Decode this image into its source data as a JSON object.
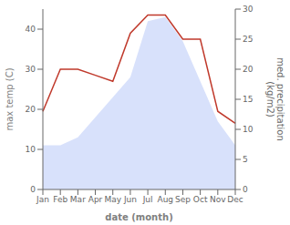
{
  "chart_data": {
    "type": "area",
    "categories": [
      "Jan",
      "Feb",
      "Mar",
      "Apr",
      "May",
      "Jun",
      "Jul",
      "Aug",
      "Sep",
      "Oct",
      "Nov",
      "Dec"
    ],
    "series": [
      {
        "type": "area",
        "color": "#b8c8f8",
        "values": [
          11,
          11,
          13,
          18,
          23,
          28,
          42,
          43,
          37,
          27,
          17,
          11
        ]
      },
      {
        "type": "line",
        "color": "#c0392b",
        "axis": "y2",
        "values": [
          13,
          20,
          20,
          19,
          18,
          26,
          29,
          29,
          25,
          25,
          13,
          11
        ]
      }
    ],
    "xlabel": "date (month)",
    "ylabel": "max temp (C)",
    "y2label": "med. precipitation\n(kg/m2)",
    "ylim": [
      0,
      45
    ],
    "yticks": [
      0,
      10,
      20,
      30,
      40
    ],
    "y2lim": [
      0,
      30
    ],
    "y2ticks": [
      0,
      5,
      10,
      15,
      20,
      25,
      30
    ],
    "grid": false
  }
}
